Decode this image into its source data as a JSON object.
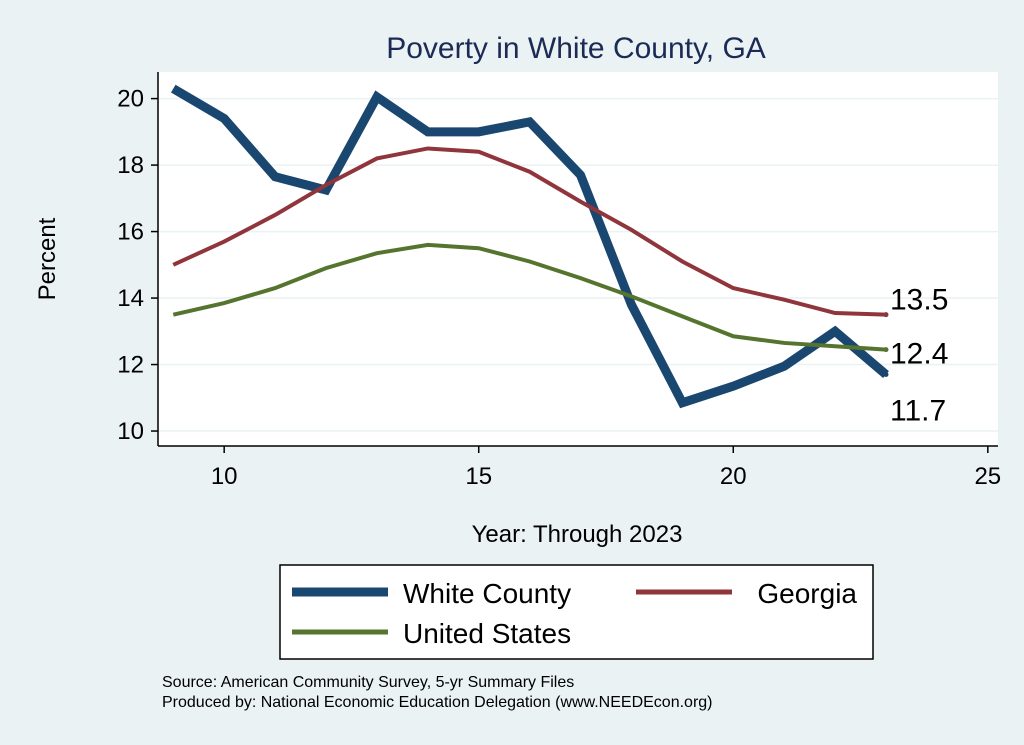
{
  "chart_data": {
    "type": "line",
    "title": "Poverty in White County, GA",
    "xlabel": "Year: Through 2023",
    "ylabel": "Percent",
    "xlim": [
      8.7,
      25.2
    ],
    "ylim": [
      9.55,
      20.8
    ],
    "xticks": [
      10,
      15,
      20,
      25
    ],
    "yticks": [
      10,
      12,
      14,
      16,
      18,
      20
    ],
    "x": [
      9,
      10,
      11,
      12,
      13,
      14,
      15,
      16,
      17,
      18,
      19,
      20,
      21,
      22,
      23
    ],
    "series": [
      {
        "name": "White County",
        "color": "#1a476f",
        "values": [
          20.3,
          19.4,
          17.65,
          17.25,
          20.05,
          19.0,
          19.0,
          19.3,
          17.7,
          13.8,
          10.85,
          11.35,
          11.95,
          13.0,
          11.7
        ],
        "end_label": "11.7"
      },
      {
        "name": "Georgia",
        "color": "#90353b",
        "values": [
          15.0,
          15.7,
          16.5,
          17.4,
          18.2,
          18.5,
          18.4,
          17.8,
          16.9,
          16.05,
          15.1,
          14.3,
          13.95,
          13.55,
          13.5
        ],
        "end_label": "13.5"
      },
      {
        "name": "United States",
        "color": "#55752f",
        "values": [
          13.5,
          13.85,
          14.3,
          14.9,
          15.35,
          15.6,
          15.5,
          15.1,
          14.6,
          14.05,
          13.45,
          12.85,
          12.65,
          12.55,
          12.45
        ],
        "end_label": "12.4"
      }
    ],
    "legend": {
      "position": "bottom",
      "entries": [
        "White County",
        "Georgia",
        "United States"
      ]
    },
    "grid": true,
    "source_lines": [
      "Source: American Community Survey, 5-yr Summary Files",
      "Produced by: National Economic Education Delegation (www.NEEDEcon.org)"
    ]
  }
}
